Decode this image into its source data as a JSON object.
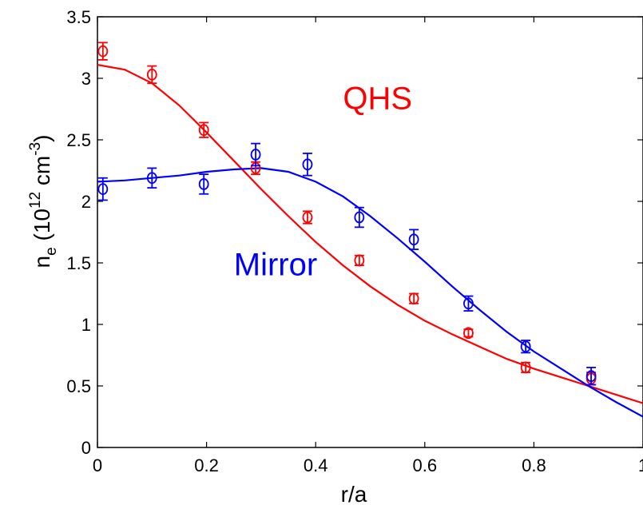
{
  "chart_data": {
    "type": "scatter",
    "title": "",
    "xlabel": "r/a",
    "ylabel": {
      "base": "n",
      "sub": "e",
      "open": " (10",
      "exp1": "12",
      "unit": " cm",
      "exp2": "-3",
      "close": ")"
    },
    "xlim": [
      0,
      1
    ],
    "ylim": [
      0,
      3.5
    ],
    "x_ticks": [
      "0",
      "0.2",
      "0.4",
      "0.6",
      "0.8",
      "1"
    ],
    "y_ticks": [
      "0",
      "0.5",
      "1",
      "1.5",
      "2",
      "2.5",
      "3",
      "3.5"
    ],
    "grid": false,
    "series": [
      {
        "name": "QHS",
        "color": "#ff0000",
        "points": [
          {
            "x": 0.01,
            "y": 3.22,
            "err": 0.07
          },
          {
            "x": 0.1,
            "y": 3.03,
            "err": 0.07
          },
          {
            "x": 0.195,
            "y": 2.58,
            "err": 0.06
          },
          {
            "x": 0.29,
            "y": 2.27,
            "err": 0.05
          },
          {
            "x": 0.385,
            "y": 1.87,
            "err": 0.05
          },
          {
            "x": 0.48,
            "y": 1.52,
            "err": 0.04
          },
          {
            "x": 0.58,
            "y": 1.21,
            "err": 0.04
          },
          {
            "x": 0.68,
            "y": 0.93,
            "err": 0.03
          },
          {
            "x": 0.785,
            "y": 0.65,
            "err": 0.04
          },
          {
            "x": 0.905,
            "y": 0.56,
            "err": 0.05
          }
        ],
        "fit": [
          [
            0.0,
            3.11
          ],
          [
            0.05,
            3.07
          ],
          [
            0.1,
            2.96
          ],
          [
            0.15,
            2.78
          ],
          [
            0.2,
            2.56
          ],
          [
            0.25,
            2.33
          ],
          [
            0.3,
            2.1
          ],
          [
            0.35,
            1.88
          ],
          [
            0.4,
            1.67
          ],
          [
            0.45,
            1.48
          ],
          [
            0.5,
            1.31
          ],
          [
            0.55,
            1.16
          ],
          [
            0.6,
            1.03
          ],
          [
            0.65,
            0.92
          ],
          [
            0.7,
            0.82
          ],
          [
            0.75,
            0.72
          ],
          [
            0.8,
            0.64
          ],
          [
            0.85,
            0.57
          ],
          [
            0.9,
            0.5
          ],
          [
            0.95,
            0.43
          ],
          [
            1.0,
            0.36
          ]
        ]
      },
      {
        "name": "Mirror",
        "color": "#0000ff",
        "points": [
          {
            "x": 0.01,
            "y": 2.1,
            "err": 0.09
          },
          {
            "x": 0.1,
            "y": 2.19,
            "err": 0.08
          },
          {
            "x": 0.195,
            "y": 2.14,
            "err": 0.08
          },
          {
            "x": 0.29,
            "y": 2.38,
            "err": 0.09
          },
          {
            "x": 0.385,
            "y": 2.3,
            "err": 0.09
          },
          {
            "x": 0.48,
            "y": 1.87,
            "err": 0.08
          },
          {
            "x": 0.58,
            "y": 1.69,
            "err": 0.08
          },
          {
            "x": 0.68,
            "y": 1.17,
            "err": 0.06
          },
          {
            "x": 0.785,
            "y": 0.82,
            "err": 0.05
          },
          {
            "x": 0.905,
            "y": 0.58,
            "err": 0.07
          }
        ],
        "fit": [
          [
            0.0,
            2.16
          ],
          [
            0.05,
            2.17
          ],
          [
            0.1,
            2.19
          ],
          [
            0.15,
            2.21
          ],
          [
            0.2,
            2.24
          ],
          [
            0.25,
            2.26
          ],
          [
            0.3,
            2.27
          ],
          [
            0.35,
            2.24
          ],
          [
            0.4,
            2.16
          ],
          [
            0.45,
            2.04
          ],
          [
            0.5,
            1.88
          ],
          [
            0.55,
            1.7
          ],
          [
            0.6,
            1.51
          ],
          [
            0.65,
            1.31
          ],
          [
            0.7,
            1.12
          ],
          [
            0.75,
            0.94
          ],
          [
            0.8,
            0.78
          ],
          [
            0.85,
            0.64
          ],
          [
            0.9,
            0.5
          ],
          [
            0.95,
            0.37
          ],
          [
            1.0,
            0.25
          ]
        ]
      }
    ],
    "annotations": [
      {
        "text": "QHS",
        "color": "#ff0000",
        "x": 0.45,
        "y": 2.75
      },
      {
        "text": "Mirror",
        "color": "#0000ff",
        "x": 0.25,
        "y": 1.4
      }
    ]
  }
}
